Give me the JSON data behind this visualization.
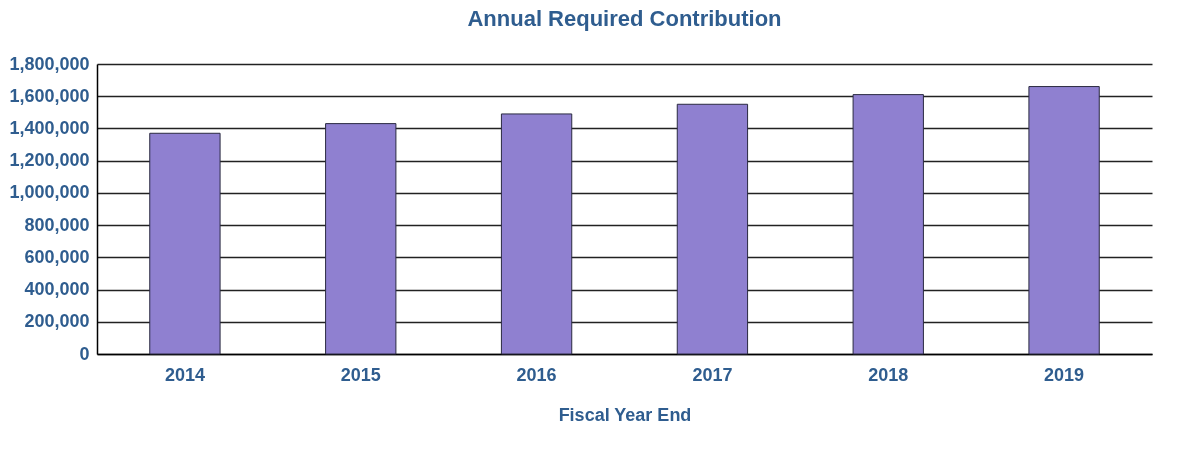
{
  "chart_data": {
    "type": "bar",
    "title": "Annual Required Contribution",
    "xlabel": "Fiscal Year End",
    "categories": [
      "2014",
      "2015",
      "2016",
      "2017",
      "2018",
      "2019"
    ],
    "values": [
      1370000,
      1430000,
      1490000,
      1550000,
      1610000,
      1660000
    ],
    "color": "#8f80d0",
    "ylim": [
      0,
      1800000
    ],
    "yticks": [
      0,
      {
        "value": 200000,
        "label": "200,000"
      },
      {
        "value": 400000,
        "label": "400,000"
      },
      {
        "value": 600000,
        "label": "600,000"
      },
      {
        "value": 800000,
        "label": "800,000"
      },
      {
        "value": 1000000,
        "label": "1,000,000"
      },
      {
        "value": 1200000,
        "label": "1,200,000"
      },
      {
        "value": 1400000,
        "label": "1,400,000"
      },
      {
        "value": 1600000,
        "label": "1,600,000"
      },
      {
        "value": 1800000,
        "label": "1,800,000"
      }
    ],
    "grid": "y"
  }
}
